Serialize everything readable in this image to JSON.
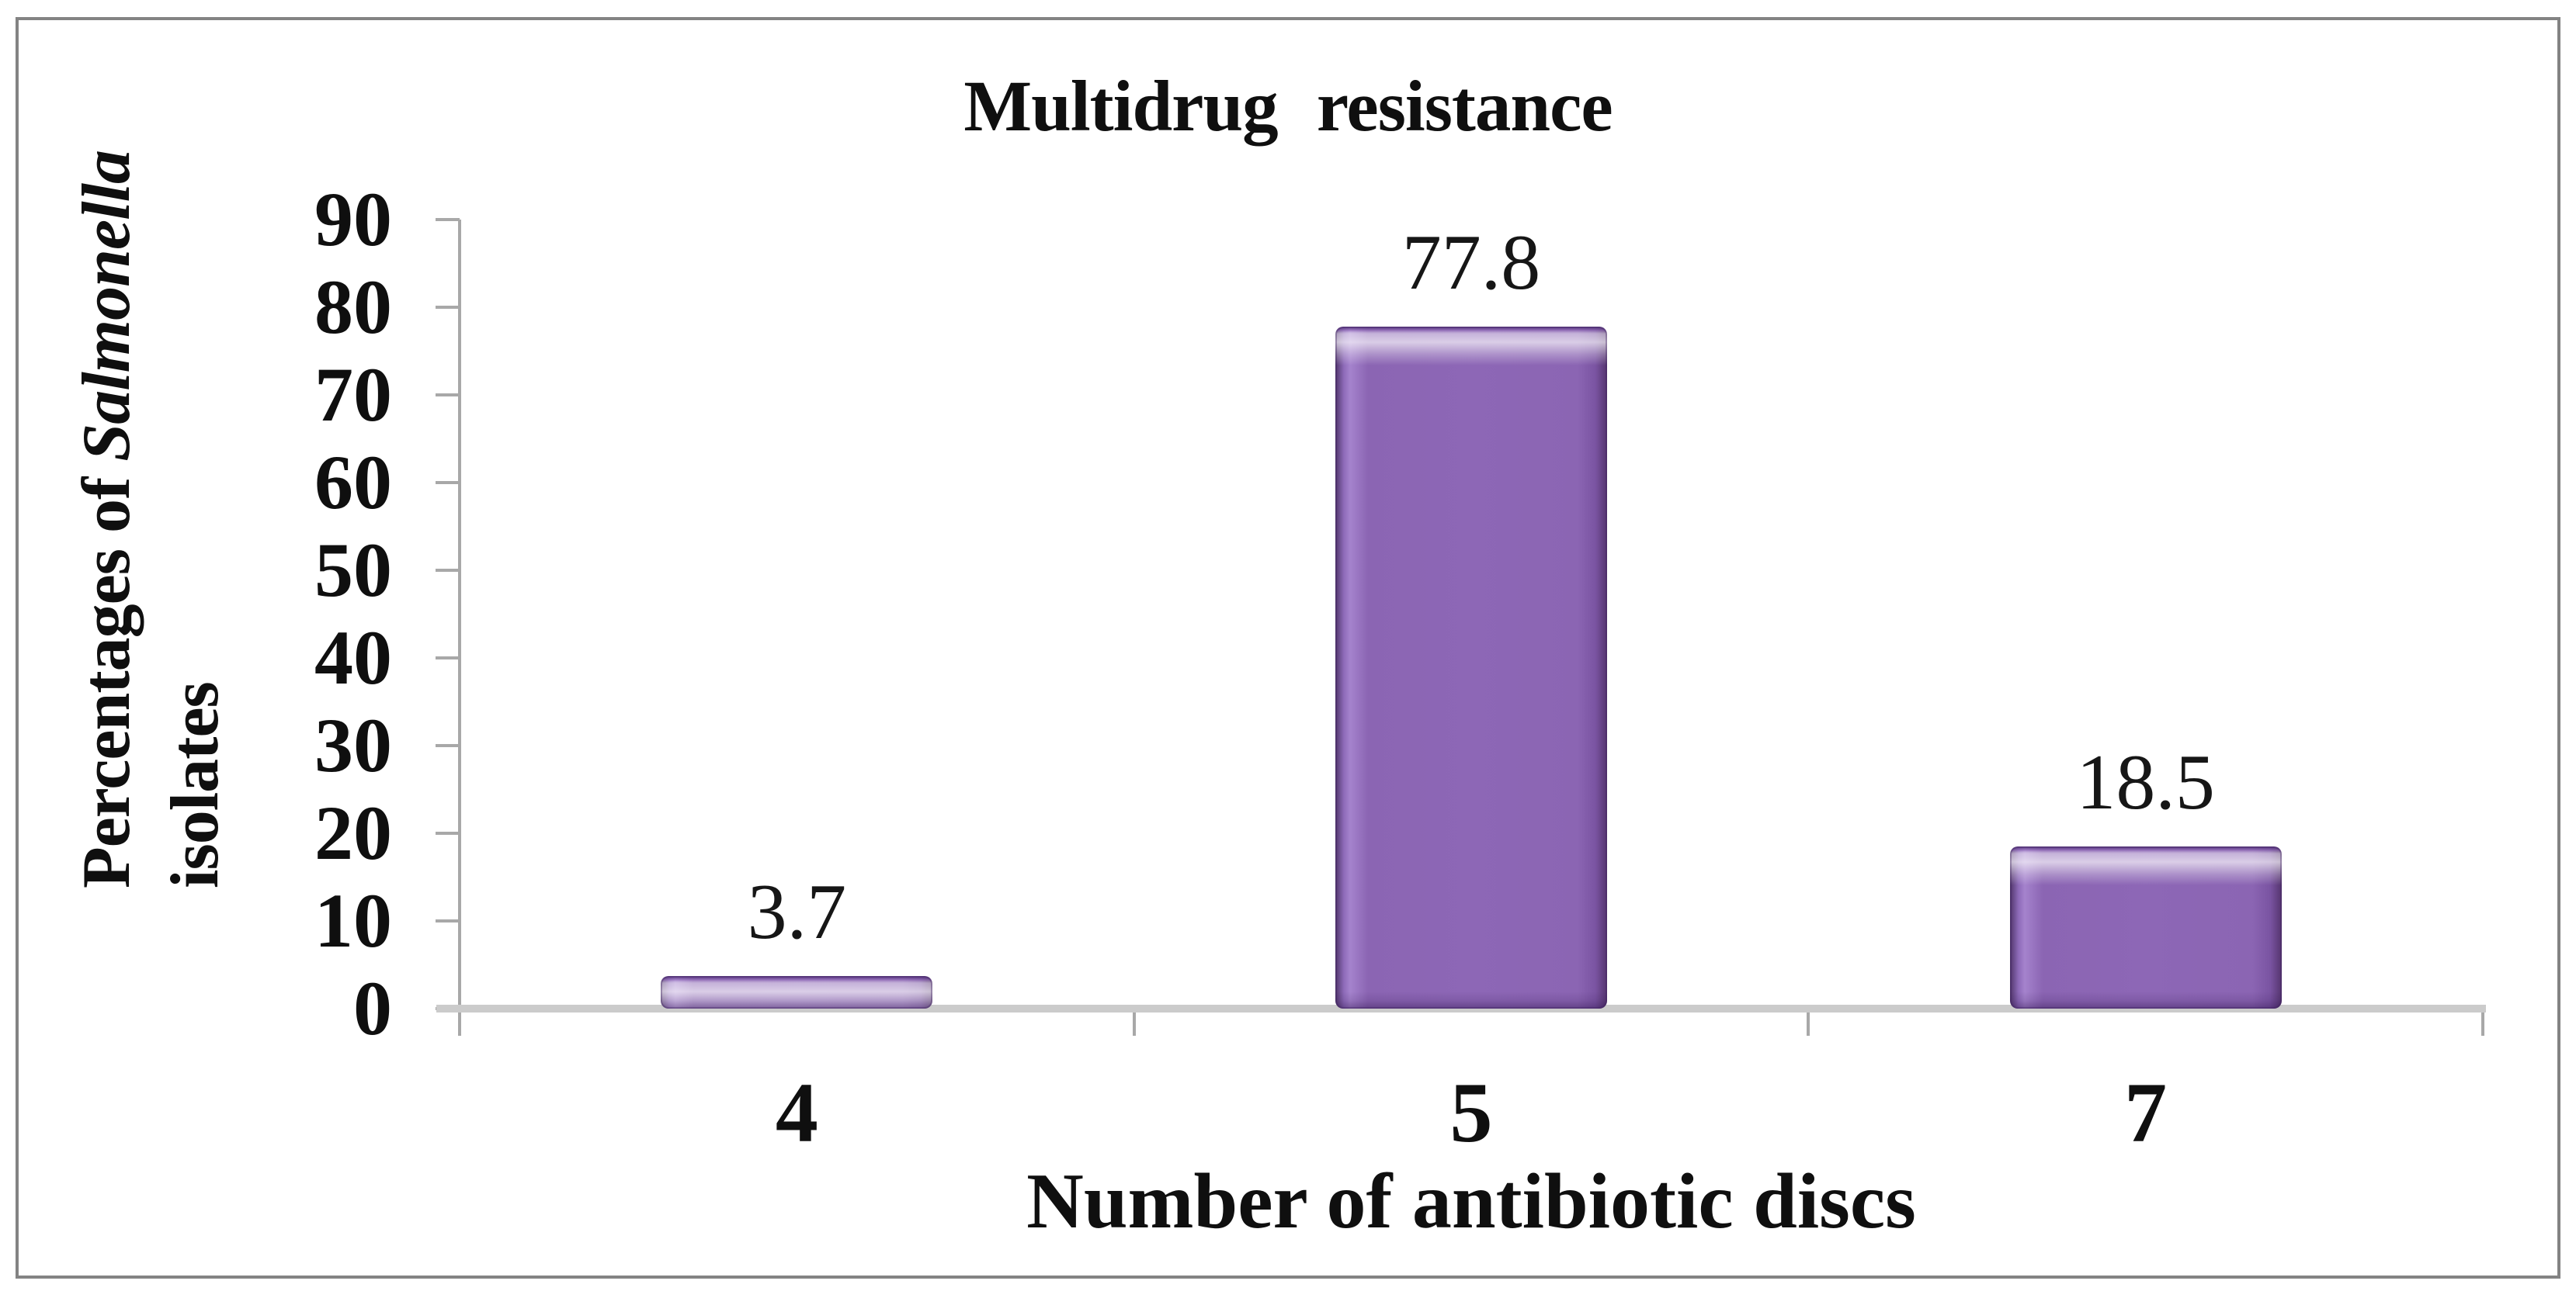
{
  "chart_data": {
    "type": "bar",
    "title": "Multidrug resistance",
    "categories": [
      "4",
      "5",
      "7"
    ],
    "values": [
      3.7,
      77.8,
      18.5
    ],
    "data_labels": [
      "3.7",
      "77.8",
      "18.5"
    ],
    "xlabel": "Number of antibiotic discs",
    "ylabel": "Percentages of Salmonella isolates",
    "ylabel_prefix": "Percentages of ",
    "ylabel_italic": "Salmonella",
    "ylabel_line2": "isolates",
    "yticks": [
      "90",
      "80",
      "70",
      "60",
      "50",
      "40",
      "30",
      "20",
      "10",
      "0"
    ],
    "ylim": [
      0,
      90
    ],
    "ytick_step": 10,
    "grid": false,
    "legend_position": "none",
    "colors": {
      "bar_fill": "#8b65b3",
      "bar_highlight": "#cda7ec",
      "bar_edge": "#50356a",
      "x_axis_line": "#cbcbcb",
      "tick_mark": "#a8a8a8",
      "text": "#0f0f0f",
      "frame_border": "#838383"
    }
  }
}
